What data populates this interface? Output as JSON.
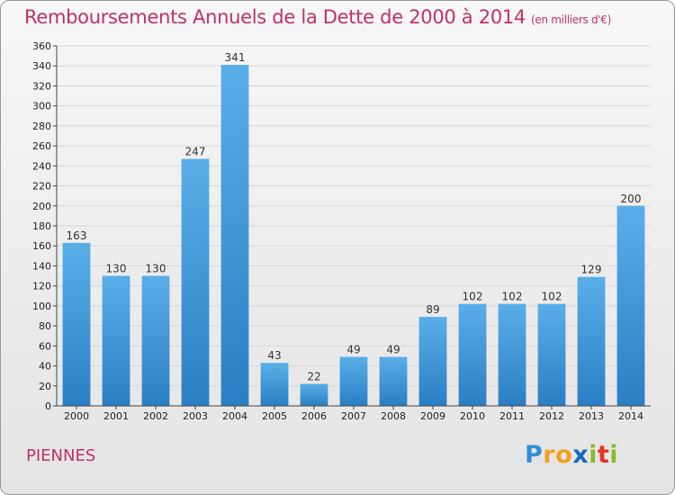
{
  "header": {
    "title": "Remboursements Annuels de la Dette de 2000 à 2014",
    "unit": "(en milliers d'€)"
  },
  "footer": {
    "commune": "PIENNES",
    "logo": "Proxiti"
  },
  "colors": {
    "bar_top": "#5aaee8",
    "bar_bottom": "#2a7fc4",
    "title": "#c0306a",
    "grid": "#d8d8d8"
  },
  "chart_data": {
    "type": "bar",
    "title": "Remboursements Annuels de la Dette de 2000 à 2014",
    "xlabel": "",
    "ylabel": "",
    "categories": [
      "2000",
      "2001",
      "2002",
      "2003",
      "2004",
      "2005",
      "2006",
      "2007",
      "2008",
      "2009",
      "2010",
      "2011",
      "2012",
      "2013",
      "2014"
    ],
    "values": [
      163,
      130,
      130,
      247,
      341,
      43,
      22,
      49,
      49,
      89,
      102,
      102,
      102,
      129,
      200
    ],
    "ylim": [
      0,
      360
    ],
    "yticks": [
      0,
      20,
      40,
      60,
      80,
      100,
      120,
      140,
      160,
      180,
      200,
      220,
      240,
      260,
      280,
      300,
      320,
      340,
      360
    ],
    "grid": true,
    "show_value_labels": true
  }
}
